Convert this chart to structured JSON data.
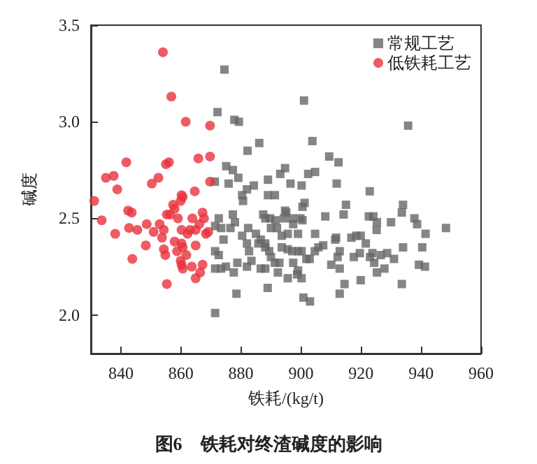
{
  "chart_data": {
    "type": "scatter",
    "xlabel": "铁耗/(kg/t)",
    "ylabel": "碱度",
    "annotations": [
      "图6　铁耗对终渣碱度的影响"
    ],
    "xlim": [
      830,
      960
    ],
    "xticks": [
      840,
      860,
      880,
      900,
      920,
      940,
      960
    ],
    "ylim": [
      1.8,
      3.5
    ],
    "yticks": [
      {
        "value": 2,
        "label": "2.0"
      },
      {
        "value": 2.5,
        "label": "2.5"
      },
      {
        "value": 3,
        "label": "3.0"
      },
      {
        "value": 3.5,
        "label": "3.5"
      }
    ],
    "grid": false,
    "legend": "top right",
    "series": [
      {
        "name": "常规工艺",
        "color": "#666666",
        "marker": "square",
        "x": [
          874.5,
          872.2,
          877.8,
          879.3,
          886.1,
          882.2,
          875.1,
          877.3,
          879.1,
          871.3,
          875.9,
          882,
          884.3,
          889,
          893.1,
          894.7,
          896.5,
          880.4,
          889,
          891.3,
          901,
          935.7,
          903.8,
          909.4,
          912.5,
          902.4,
          904.7,
          900.2,
          911.9,
          922.9,
          915,
          914.2,
          908.1,
          900.5,
          901.2,
          894.7,
          895.1,
          897.1,
          897.4,
          891.5,
          889.7,
          888.1,
          899.8,
          900.5,
          922.6,
          924.1,
          925.3,
          925.2,
          934,
          933.6,
          937.8,
          938.7,
          930,
          941.5,
          948.3,
          890,
          893.6,
          895.6,
          899,
          904.7,
          911.7,
          911.4,
          916.8,
          918.4,
          919.9,
          921.6,
          907.4,
          905.8,
          904.6,
          902.9,
          888.1,
          889.4,
          890,
          893.6,
          895.6,
          897.1,
          899,
          900.2,
          912.9,
          912.2,
          919.6,
          917.6,
          923,
          923.8,
          926.6,
          928.7,
          931,
          934,
          940.4,
          924.4,
          925.3,
          927.8,
          939.3,
          941.3,
          910.1,
          912.9,
          901.8,
          897.4,
          892.3,
          895.6,
          899,
          900.2,
          898.7,
          888.1,
          888.9,
          919.9,
          914.5,
          912.9,
          933.6,
          900.8,
          903,
          880.7,
          872.6,
          871.4,
          873.4,
          877.3,
          878,
          876.5,
          874.2,
          871.4,
          872.6,
          871.4,
          873.4,
          875,
          877.6,
          871.4,
          878.5,
          882.4,
          880.4,
          882,
          882.7,
          883.5,
          885,
          886.6,
          885.8,
          888.1,
          887.4,
          894.3,
          892,
          878.8,
          882,
          886.6,
          891.3,
          892.8
        ],
        "values": [
          3.27,
          3.05,
          3.01,
          3.0,
          2.89,
          2.85,
          2.77,
          2.75,
          2.71,
          2.69,
          2.68,
          2.65,
          2.67,
          2.7,
          2.73,
          2.76,
          2.68,
          2.62,
          2.62,
          2.62,
          3.11,
          2.98,
          2.9,
          2.82,
          2.79,
          2.73,
          2.74,
          2.67,
          2.68,
          2.64,
          2.57,
          2.52,
          2.51,
          2.56,
          2.58,
          2.54,
          2.53,
          2.5,
          2.47,
          2.49,
          2.5,
          2.5,
          2.5,
          2.49,
          2.51,
          2.51,
          2.48,
          2.44,
          2.57,
          2.53,
          2.5,
          2.47,
          2.48,
          2.42,
          2.45,
          2.45,
          2.41,
          2.42,
          2.42,
          2.42,
          2.4,
          2.39,
          2.4,
          2.41,
          2.41,
          2.37,
          2.36,
          2.35,
          2.33,
          2.29,
          2.37,
          2.33,
          2.3,
          2.35,
          2.34,
          2.33,
          2.33,
          2.33,
          2.33,
          2.3,
          2.32,
          2.3,
          2.3,
          2.32,
          2.31,
          2.32,
          2.29,
          2.35,
          2.35,
          2.27,
          2.22,
          2.24,
          2.26,
          2.25,
          2.26,
          2.24,
          2.29,
          2.27,
          2.22,
          2.19,
          2.23,
          2.19,
          2.21,
          2.24,
          2.14,
          2.18,
          2.16,
          2.11,
          2.16,
          2.09,
          2.07,
          2.59,
          2.5,
          2.46,
          2.45,
          2.52,
          2.48,
          2.45,
          2.39,
          2.33,
          2.31,
          2.24,
          2.24,
          2.25,
          2.22,
          2.01,
          2.11,
          2.45,
          2.41,
          2.37,
          2.33,
          2.28,
          2.42,
          2.39,
          2.37,
          2.35,
          2.52,
          2.5,
          2.45,
          2.27,
          2.25,
          2.24,
          2.27,
          2.27
        ]
      },
      {
        "name": "低铁耗工艺",
        "color": "#e8323c",
        "marker": "circle",
        "x": [
          854,
          856.8,
          861.6,
          869.7,
          841.8,
          835,
          837.6,
          838.8,
          850.3,
          852.5,
          855,
          856,
          865.8,
          869.7,
          869.7,
          860.2,
          864.6,
          831.1,
          833.6,
          838.1,
          842.4,
          843.6,
          842.7,
          845.5,
          843.8,
          848.6,
          848.3,
          850.9,
          852.9,
          854.3,
          853.7,
          855.3,
          856.4,
          857.4,
          857.9,
          859.9,
          860.6,
          854.3,
          854.8,
          855.3,
          857.9,
          859,
          860.2,
          860.2,
          860.6,
          858.7,
          859.9,
          860.2,
          860.6,
          861.8,
          862.2,
          863,
          863.8,
          864.9,
          864.9,
          863.6,
          864.9,
          866.4,
          867.2,
          867.2,
          867.7,
          866.1,
          868.3,
          869.1
        ],
        "values": [
          3.36,
          3.13,
          3.0,
          2.98,
          2.79,
          2.71,
          2.72,
          2.65,
          2.68,
          2.71,
          2.78,
          2.79,
          2.81,
          2.82,
          2.69,
          2.62,
          2.64,
          2.59,
          2.49,
          2.42,
          2.54,
          2.53,
          2.45,
          2.44,
          2.29,
          2.47,
          2.36,
          2.43,
          2.47,
          2.44,
          2.4,
          2.52,
          2.52,
          2.57,
          2.55,
          2.59,
          2.61,
          2.34,
          2.31,
          2.16,
          2.38,
          2.5,
          2.44,
          2.37,
          2.35,
          2.33,
          2.28,
          2.26,
          2.24,
          2.31,
          2.42,
          2.44,
          2.5,
          2.44,
          2.36,
          2.25,
          2.19,
          2.22,
          2.26,
          2.53,
          2.5,
          2.47,
          2.42,
          2.43
        ]
      }
    ]
  }
}
